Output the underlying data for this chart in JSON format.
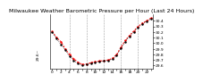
{
  "title": "Milwaukee Weather Barometric Pressure per Hour (Last 24 Hours)",
  "hours": [
    0,
    1,
    2,
    3,
    4,
    5,
    6,
    7,
    8,
    9,
    10,
    11,
    12,
    13,
    14,
    15,
    16,
    17,
    18,
    19,
    20,
    21,
    22,
    23
  ],
  "pressure_red": [
    30.21,
    30.1,
    30.03,
    29.9,
    29.8,
    29.72,
    29.66,
    29.62,
    29.63,
    29.65,
    29.67,
    29.68,
    29.69,
    29.7,
    29.73,
    29.8,
    29.93,
    30.05,
    30.14,
    30.22,
    30.3,
    30.36,
    30.4,
    30.45
  ],
  "pressure_black": [
    30.2,
    30.08,
    29.98,
    29.88,
    29.77,
    29.69,
    29.64,
    29.6,
    29.62,
    29.64,
    29.66,
    29.67,
    29.68,
    29.69,
    29.72,
    29.78,
    29.91,
    30.03,
    30.12,
    30.2,
    30.28,
    30.34,
    30.39,
    30.43
  ],
  "ylim": [
    29.55,
    30.52
  ],
  "yticks": [
    29.6,
    29.7,
    29.8,
    29.9,
    30.0,
    30.1,
    30.2,
    30.3,
    30.4
  ],
  "ytick_labels": [
    "29.6",
    "29.7",
    "29.8",
    "29.9",
    "30.0",
    "30.1",
    "30.2",
    "30.3",
    "30.4"
  ],
  "xlim": [
    -0.5,
    23.5
  ],
  "xticks": [
    0,
    1,
    2,
    3,
    4,
    5,
    6,
    7,
    8,
    9,
    10,
    11,
    12,
    13,
    14,
    15,
    16,
    17,
    18,
    19,
    20,
    21,
    22,
    23
  ],
  "xtick_labels": [
    "0",
    "",
    "2",
    "",
    "4",
    "",
    "6",
    "",
    "8",
    "",
    "10",
    "",
    "12",
    "",
    "14",
    "",
    "16",
    "",
    "18",
    "",
    "20",
    "",
    "22",
    ""
  ],
  "grid_hours": [
    4,
    8,
    12,
    16,
    20
  ],
  "bg_color": "#ffffff",
  "line_color_red": "#ff0000",
  "line_color_black": "#000000",
  "title_fontsize": 4.5,
  "tick_fontsize": 3.2,
  "left_label": "29.6~"
}
